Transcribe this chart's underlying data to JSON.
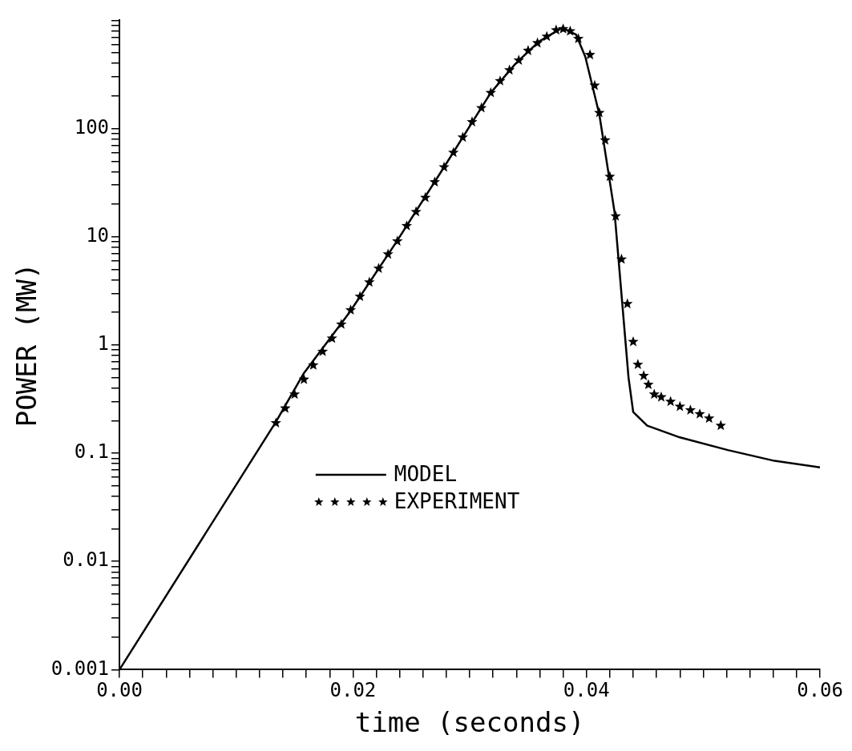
{
  "chart_data": {
    "type": "line",
    "xlabel": "time (seconds)",
    "ylabel": "POWER (MW)",
    "log": "y",
    "grid": false,
    "legend": "bottom",
    "xlim": [
      0,
      0.06
    ],
    "ylim": [
      0.001,
      1000
    ],
    "xticks": [
      {
        "value": 0,
        "label": "0.00"
      },
      {
        "value": 0.002,
        "label": null
      },
      {
        "value": 0.004,
        "label": null
      },
      {
        "value": 0.006,
        "label": null
      },
      {
        "value": 0.008,
        "label": null
      },
      {
        "value": 0.01,
        "label": null
      },
      {
        "value": 0.012,
        "label": null
      },
      {
        "value": 0.014,
        "label": null
      },
      {
        "value": 0.016,
        "label": null
      },
      {
        "value": 0.018,
        "label": null
      },
      {
        "value": 0.02,
        "label": "0.02"
      },
      {
        "value": 0.022,
        "label": null
      },
      {
        "value": 0.024,
        "label": null
      },
      {
        "value": 0.026,
        "label": null
      },
      {
        "value": 0.028,
        "label": null
      },
      {
        "value": 0.03,
        "label": null
      },
      {
        "value": 0.032,
        "label": null
      },
      {
        "value": 0.034,
        "label": null
      },
      {
        "value": 0.036,
        "label": null
      },
      {
        "value": 0.038,
        "label": null
      },
      {
        "value": 0.04,
        "label": "0.04"
      },
      {
        "value": 0.042,
        "label": null
      },
      {
        "value": 0.044,
        "label": null
      },
      {
        "value": 0.046,
        "label": null
      },
      {
        "value": 0.048,
        "label": null
      },
      {
        "value": 0.05,
        "label": null
      },
      {
        "value": 0.052,
        "label": null
      },
      {
        "value": 0.054,
        "label": null
      },
      {
        "value": 0.056,
        "label": null
      },
      {
        "value": 0.058,
        "label": null
      },
      {
        "value": 0.06,
        "label": "0.06"
      }
    ],
    "yticks": [
      0.001,
      {
        "value": 0.002,
        "label": null
      },
      {
        "value": 0.003,
        "label": null
      },
      {
        "value": 0.004,
        "label": null
      },
      {
        "value": 0.005,
        "label": null
      },
      {
        "value": 0.006,
        "label": null
      },
      {
        "value": 0.007,
        "label": null
      },
      {
        "value": 0.008,
        "label": null
      },
      {
        "value": 0.009,
        "label": null
      },
      0.01,
      {
        "value": 0.02,
        "label": null
      },
      {
        "value": 0.03,
        "label": null
      },
      {
        "value": 0.04,
        "label": null
      },
      {
        "value": 0.05,
        "label": null
      },
      {
        "value": 0.06,
        "label": null
      },
      {
        "value": 0.07,
        "label": null
      },
      {
        "value": 0.08,
        "label": null
      },
      {
        "value": 0.09,
        "label": null
      },
      0.1,
      {
        "value": 0.2,
        "label": null
      },
      {
        "value": 0.3,
        "label": null
      },
      {
        "value": 0.4,
        "label": null
      },
      {
        "value": 0.5,
        "label": null
      },
      {
        "value": 0.6,
        "label": null
      },
      {
        "value": 0.7,
        "label": null
      },
      {
        "value": 0.8,
        "label": null
      },
      {
        "value": 0.9,
        "label": null
      },
      1,
      {
        "value": 2,
        "label": null
      },
      {
        "value": 3,
        "label": null
      },
      {
        "value": 4,
        "label": null
      },
      {
        "value": 5,
        "label": null
      },
      {
        "value": 6,
        "label": null
      },
      {
        "value": 7,
        "label": null
      },
      {
        "value": 8,
        "label": null
      },
      {
        "value": 9,
        "label": null
      },
      10,
      {
        "value": 20,
        "label": null
      },
      {
        "value": 30,
        "label": null
      },
      {
        "value": 40,
        "label": null
      },
      {
        "value": 50,
        "label": null
      },
      {
        "value": 60,
        "label": null
      },
      {
        "value": 70,
        "label": null
      },
      {
        "value": 80,
        "label": null
      },
      {
        "value": 90,
        "label": null
      },
      100,
      {
        "value": 200,
        "label": null
      },
      {
        "value": 300,
        "label": null
      },
      {
        "value": 400,
        "label": null
      },
      {
        "value": 500,
        "label": null
      },
      {
        "value": 600,
        "label": null
      },
      {
        "value": 700,
        "label": null
      },
      {
        "value": 800,
        "label": null
      },
      {
        "value": 900,
        "label": null
      },
      {
        "value": 1000,
        "label": null
      }
    ],
    "series": [
      {
        "name": "MODEL",
        "type": "line",
        "color": "#000000",
        "marker": "none",
        "line_style": "solid",
        "x": [
          0,
          0.0134,
          0.0158,
          0.0197,
          0.0237,
          0.0278,
          0.0318,
          0.0339,
          0.0359,
          0.0379,
          0.0391,
          0.0399,
          0.0411,
          0.0424,
          0.0436,
          0.044,
          0.0452,
          0.048,
          0.0521,
          0.0561,
          0.06
        ],
        "values": [
          0.001,
          0.195,
          0.55,
          2.0,
          8.9,
          44,
          214,
          395,
          635,
          850,
          740,
          460,
          135,
          17,
          0.5,
          0.24,
          0.18,
          0.14,
          0.107,
          0.085,
          0.074
        ]
      },
      {
        "name": "EXPERIMENT",
        "type": "scatter",
        "color": "#000000",
        "marker": "star",
        "x": [
          0.0134,
          0.0142,
          0.015,
          0.0158,
          0.0166,
          0.0174,
          0.0182,
          0.019,
          0.0198,
          0.0206,
          0.0214,
          0.0222,
          0.023,
          0.0238,
          0.0246,
          0.0254,
          0.0262,
          0.027,
          0.0278,
          0.0286,
          0.0294,
          0.0302,
          0.031,
          0.0318,
          0.0326,
          0.0334,
          0.0342,
          0.035,
          0.0358,
          0.0366,
          0.0374,
          0.038,
          0.0386,
          0.0393,
          0.0403,
          0.0407,
          0.0411,
          0.0416,
          0.042,
          0.0425,
          0.043,
          0.0435,
          0.044,
          0.0444,
          0.0449,
          0.0453,
          0.0458,
          0.0464,
          0.0472,
          0.048,
          0.0489,
          0.0497,
          0.0505,
          0.0515
        ],
        "values": [
          0.19,
          0.26,
          0.35,
          0.48,
          0.65,
          0.87,
          1.15,
          1.55,
          2.1,
          2.8,
          3.8,
          5.1,
          6.9,
          9.1,
          12.6,
          17,
          23,
          32,
          44,
          60,
          83,
          115,
          155,
          214,
          275,
          347,
          427,
          525,
          617,
          708,
          813,
          832,
          794,
          676,
          480,
          250,
          140,
          78,
          36,
          15.5,
          6.2,
          2.4,
          1.07,
          0.66,
          0.52,
          0.43,
          0.35,
          0.33,
          0.3,
          0.27,
          0.25,
          0.23,
          0.21,
          0.18
        ]
      }
    ]
  }
}
